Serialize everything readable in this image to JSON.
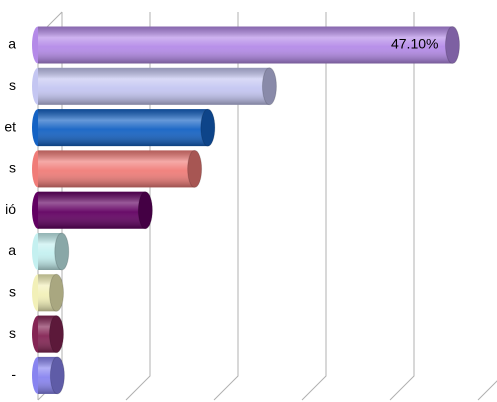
{
  "chart_data": {
    "type": "bar",
    "orientation": "horizontal",
    "categories": [
      "a",
      "s",
      "et",
      "s",
      "ió",
      "a",
      "s",
      "s",
      "-"
    ],
    "values": [
      47.1,
      26.3,
      19.3,
      17.8,
      12.2,
      2.7,
      2.1,
      2.1,
      2.2
    ],
    "value_labels": [
      "47.10%",
      null,
      null,
      null,
      null,
      null,
      null,
      null,
      null
    ],
    "colors": [
      "#b48ae8",
      "#c4c6f2",
      "#1462c4",
      "#f07c78",
      "#620062",
      "#c4f0f0",
      "#f2f0b8",
      "#842454",
      "#8884f0"
    ],
    "xlim": [
      0,
      50
    ],
    "xticks": [
      0,
      10,
      20,
      30,
      40,
      50
    ],
    "grid": true
  }
}
